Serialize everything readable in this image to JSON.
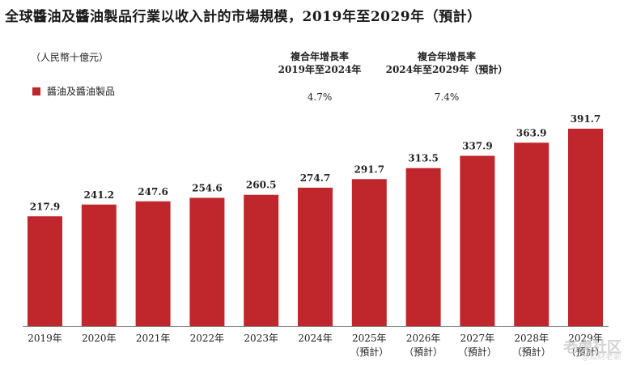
{
  "title": "全球醬油及醬油製品行業以收入計的市場規模，2019年至2029年（預計）",
  "unit_label": "（人民幣十億元）",
  "legend_label": "醬油及醬油製品",
  "cagr": [
    {
      "label_line1": "複合年增長率",
      "label_line2": "2019年至2024年",
      "value": "4.7%"
    },
    {
      "label_line1": "複合年增長率",
      "label_line2": "2024年至2029年（預計）",
      "value": "7.4%"
    }
  ],
  "watermark": "老虎社区",
  "watermark_sub": "@知财老俞",
  "colors": {
    "bar": "#c0272d",
    "axis": "#888888"
  },
  "chart_data": {
    "type": "bar",
    "title": "全球醬油及醬油製品行業以收入計的市場規模，2019年至2029年（預計）",
    "ylabel": "（人民幣十億元）",
    "categories": [
      "2019年",
      "2020年",
      "2021年",
      "2022年",
      "2023年",
      "2024年",
      "2025年",
      "2026年",
      "2027年",
      "2028年",
      "2029年"
    ],
    "sublabels": [
      "",
      "",
      "",
      "",
      "",
      "",
      "（預計）",
      "（預計）",
      "（預計）",
      "（預計）",
      "（預計）"
    ],
    "series": [
      {
        "name": "醬油及醬油製品",
        "values": [
          217.9,
          241.2,
          247.6,
          254.6,
          260.5,
          274.7,
          291.7,
          313.5,
          337.9,
          363.9,
          391.7
        ]
      }
    ],
    "value_labels": [
      "217.9",
      "241.2",
      "247.6",
      "254.6",
      "260.5",
      "274.7",
      "291.7",
      "313.5",
      "337.9",
      "363.9",
      "391.7"
    ],
    "ylim": [
      0,
      391.7
    ],
    "grid": false
  }
}
